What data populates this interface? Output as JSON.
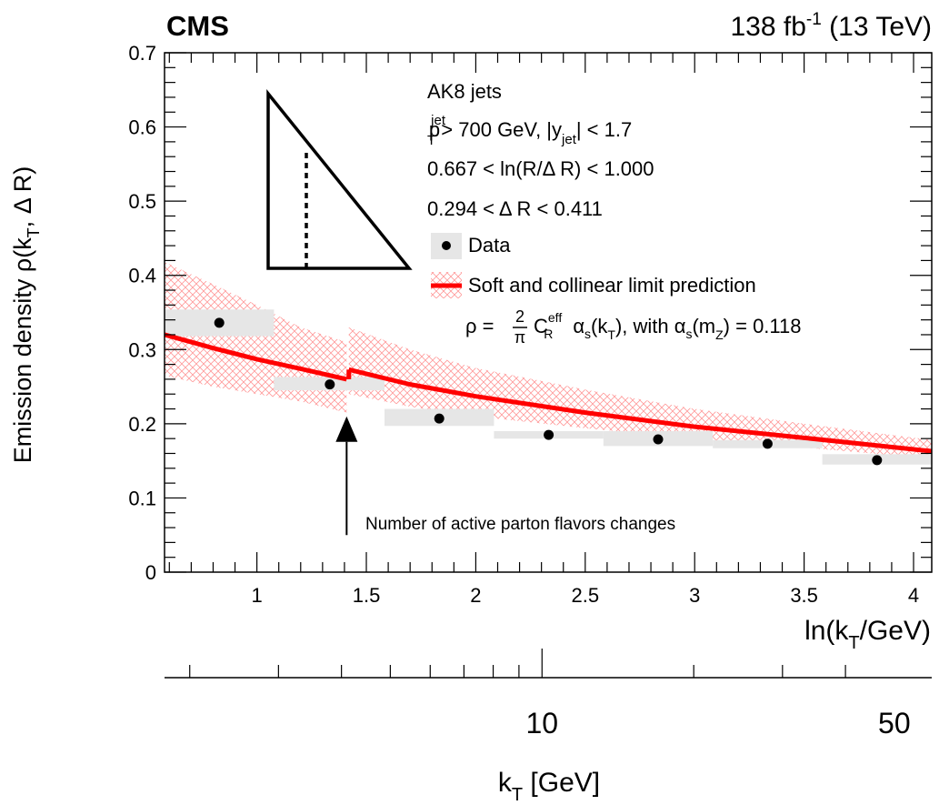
{
  "chart_data": {
    "type": "scatter",
    "experiment_label": "CMS",
    "lumi_label": "138 fb",
    "lumi_exp": "-1",
    "energy_label": " (13 TeV)",
    "x": [
      0.828,
      1.333,
      1.833,
      2.333,
      2.833,
      3.333,
      3.833
    ],
    "x_bin_edges": [
      0.578,
      1.078,
      1.583,
      2.083,
      2.583,
      3.083,
      3.583,
      4.083
    ],
    "series": [
      {
        "name": "Data",
        "values": [
          0.336,
          0.253,
          0.207,
          0.185,
          0.179,
          0.173,
          0.151
        ],
        "syst_low": [
          0.318,
          0.245,
          0.197,
          0.18,
          0.17,
          0.167,
          0.145
        ],
        "syst_high": [
          0.354,
          0.263,
          0.22,
          0.19,
          0.19,
          0.178,
          0.159
        ],
        "color": "#000000",
        "band_color": "#e6e6e6"
      },
      {
        "name": "Soft and collinear limit prediction",
        "segments": [
          {
            "x": [
              0.578,
              0.8,
              1.0,
              1.2,
              1.41
            ],
            "y": [
              0.32,
              0.302,
              0.287,
              0.274,
              0.26
            ],
            "band_low": [
              0.265,
              0.25,
              0.24,
              0.23,
              0.215
            ],
            "band_high": [
              0.418,
              0.388,
              0.36,
              0.33,
              0.31
            ]
          },
          {
            "x": [
              1.42,
              1.7,
              2.0,
              2.5,
              3.0,
              3.5,
              4.083
            ],
            "y": [
              0.273,
              0.253,
              0.237,
              0.215,
              0.196,
              0.181,
              0.163
            ],
            "band_low": [
              0.24,
              0.223,
              0.21,
              0.194,
              0.18,
              0.168,
              0.153
            ],
            "band_high": [
              0.33,
              0.3,
              0.275,
              0.246,
              0.22,
              0.2,
              0.178
            ]
          }
        ],
        "color": "#ff0000",
        "band_color": "#ff9999"
      }
    ],
    "xlim": [
      0.578,
      4.083
    ],
    "ylim": [
      0,
      0.7
    ],
    "x_ticks": [
      1,
      1.5,
      2,
      2.5,
      3,
      3.5,
      4
    ],
    "x_tick_labels": [
      "1",
      "1.5",
      "2",
      "2.5",
      "3",
      "3.5",
      "4"
    ],
    "y_ticks": [
      0,
      0.1,
      0.2,
      0.3,
      0.4,
      0.5,
      0.6,
      0.7
    ],
    "y_tick_labels": [
      "0",
      "0.1",
      "0.2",
      "0.3",
      "0.4",
      "0.5",
      "0.6",
      "0.7"
    ],
    "ylabel": "Emission density ρ(k",
    "ylabel_sub": "T",
    "ylabel_tail": ", Δ R)",
    "xlabel": "ln(k",
    "xlabel_sub": "T",
    "xlabel_tail": "/GeV)",
    "secondary_axis": {
      "label": "k",
      "label_sub": "T",
      "label_tail": " [GeV]",
      "scale": "log",
      "minor_ticks": [
        2,
        3,
        4,
        5,
        6,
        7,
        8,
        9,
        20,
        30,
        40
      ],
      "major_ticks": [
        10
      ],
      "tick_labels": [
        {
          "value": 10,
          "label": "10"
        },
        {
          "value": 50,
          "label": "50"
        }
      ]
    },
    "legend": {
      "placement": "top-right",
      "lines": [
        {
          "text": "AK8 jets"
        },
        {
          "p": "p",
          "p_sup": "jet",
          "p_sub": "T",
          "mid": " > 700 GeV, |y",
          "y_sub": "jet",
          "tail": "| < 1.7"
        },
        {
          "text": "0.667 < ln(R/Δ R) < 1.000"
        },
        {
          "text": "0.294 < Δ R < 0.411"
        }
      ],
      "entries": [
        {
          "label": "Data",
          "marker": "dot-with-box"
        },
        {
          "label": "Soft and collinear limit prediction",
          "marker": "line-with-band"
        }
      ],
      "formula": {
        "rho": "ρ = ",
        "frac_num": "2",
        "frac_den": "π",
        "c": "C",
        "c_sup": "eff",
        "c_sub": "R",
        "alpha1": "α",
        "alpha1_sub": "s",
        "mid1": "(k",
        "mid1_sub": "T",
        "mid2": "), with α",
        "mid2_sub": "s",
        "mid3": "(m",
        "mid3_sub": "Z",
        "tail": ") = 0.118"
      }
    },
    "annotation": {
      "text": "Number of active parton flavors changes",
      "arrow_x": 1.41,
      "arrow_tip_y": 0.21,
      "arrow_base_y": 0.05
    },
    "grid": false
  }
}
